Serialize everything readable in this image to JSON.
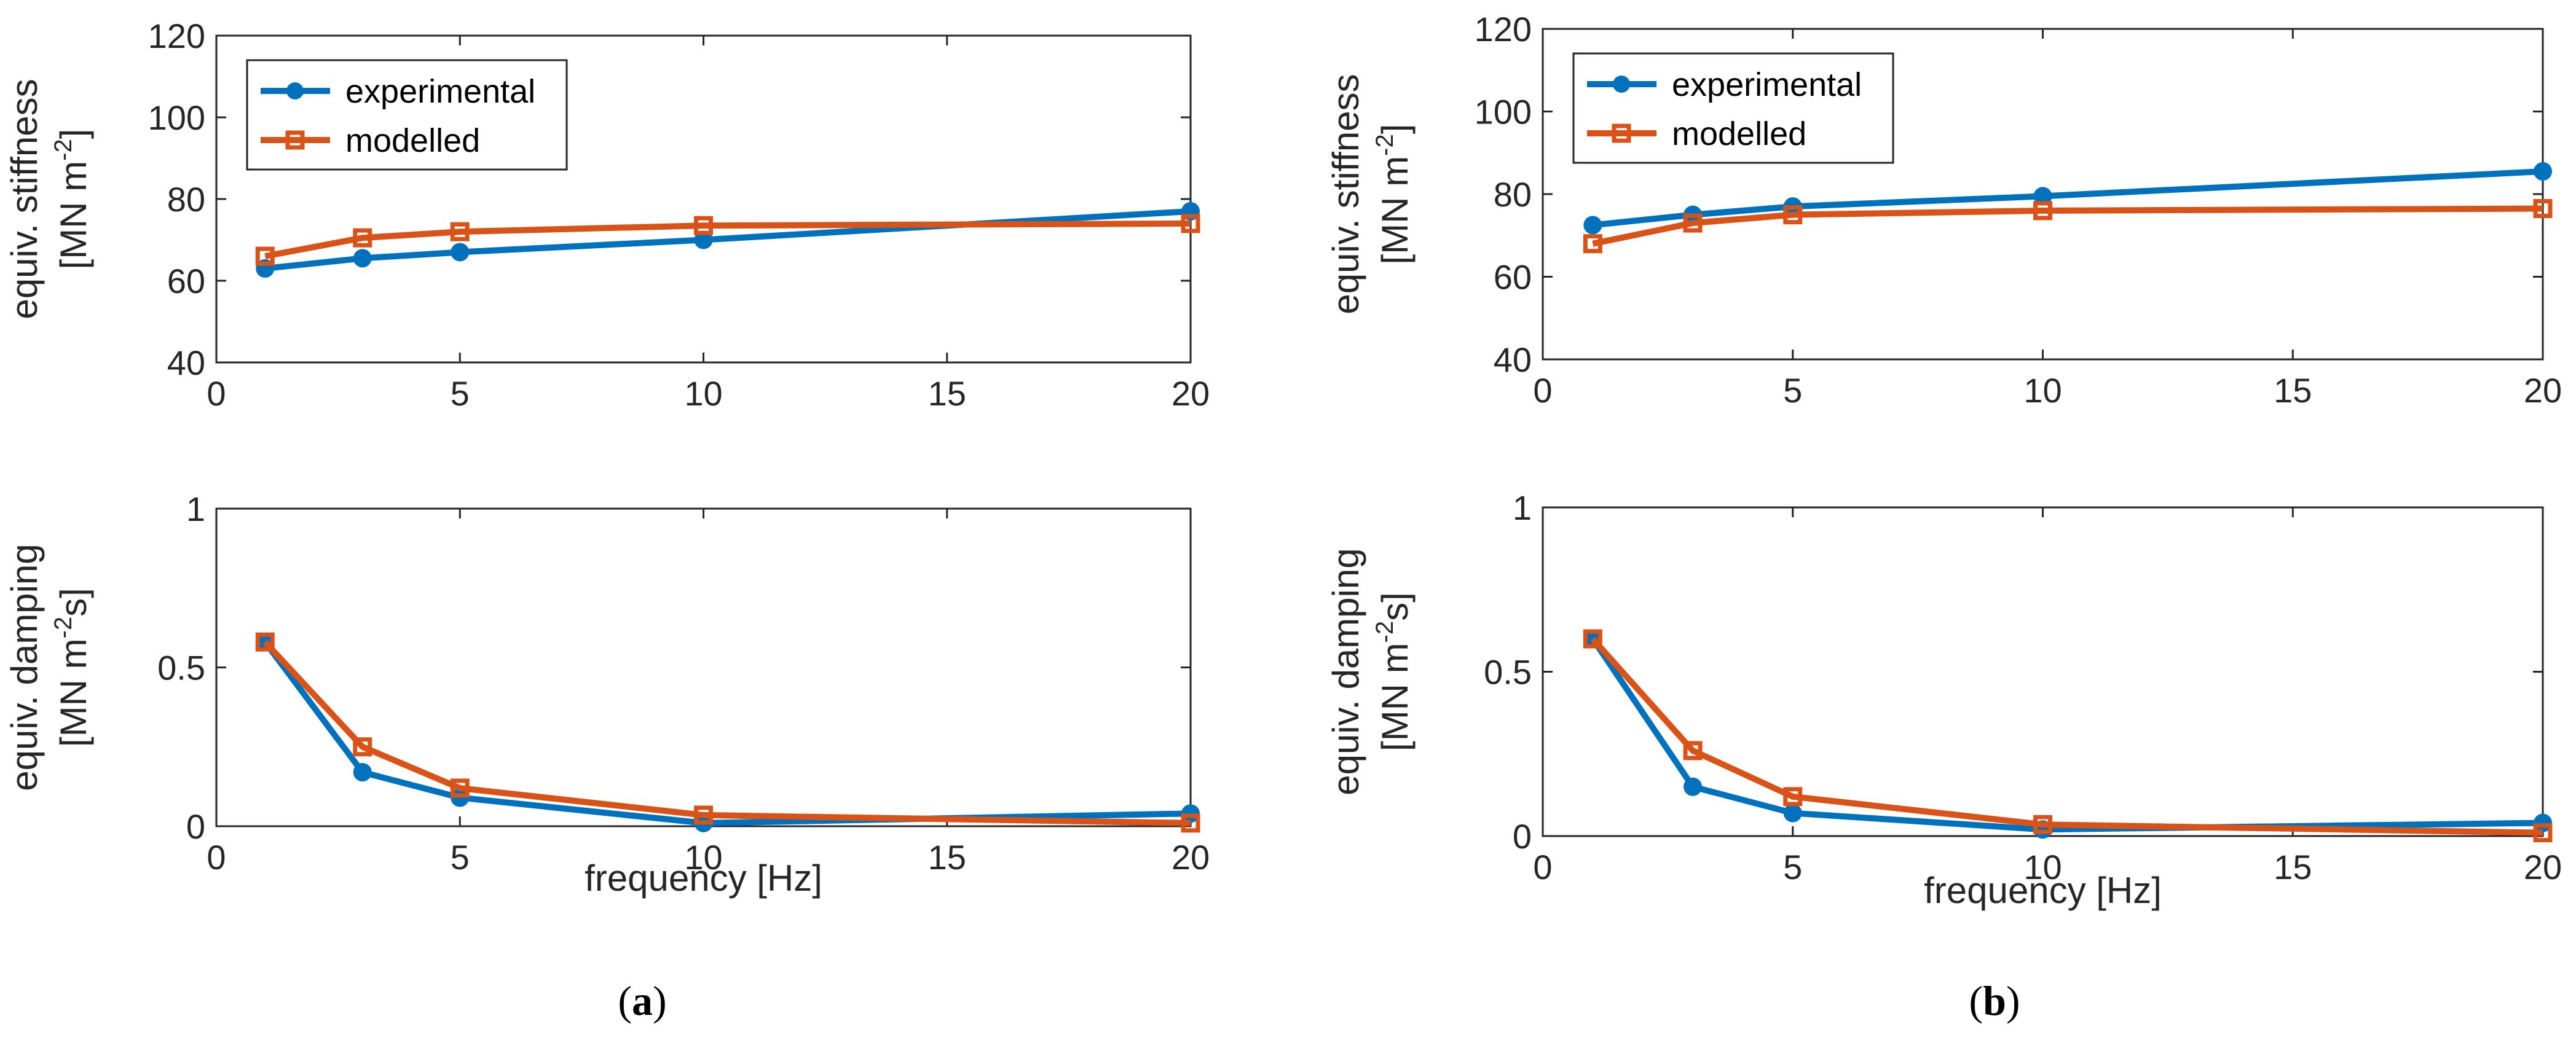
{
  "colors": {
    "experimental": "#0072BD",
    "modelled": "#D95319",
    "axis": "#262626"
  },
  "panels": [
    {
      "label_open": "(",
      "label_letter": "a",
      "label_close": ")"
    },
    {
      "label_open": "(",
      "label_letter": "b",
      "label_close": ")"
    }
  ],
  "chart_data": [
    {
      "id": "a-stiffness",
      "panel": "a",
      "type": "line",
      "xlabel": "",
      "ylabel_line1": "equiv. stiffness",
      "ylabel_line2_base": "[MN m",
      "ylabel_line2_sup": "-2",
      "ylabel_line2_end": "]",
      "xlim": [
        0,
        20
      ],
      "ylim": [
        40,
        120
      ],
      "xticks": [
        0,
        5,
        10,
        15,
        20
      ],
      "yticks": [
        40,
        60,
        80,
        100,
        120
      ],
      "xtick_labels": [
        "0",
        "5",
        "10",
        "15",
        "20"
      ],
      "ytick_labels": [
        "40",
        "60",
        "80",
        "100",
        "120"
      ],
      "legend": true,
      "series": [
        {
          "name": "experimental",
          "marker": "circle",
          "x": [
            1,
            3,
            5,
            10,
            20
          ],
          "values": [
            63,
            65.5,
            67,
            70,
            77
          ]
        },
        {
          "name": "modelled",
          "marker": "square",
          "x": [
            1,
            3,
            5,
            10,
            20
          ],
          "values": [
            66,
            70.5,
            72,
            73.5,
            74
          ]
        }
      ]
    },
    {
      "id": "a-damping",
      "panel": "a",
      "type": "line",
      "xlabel": "frequency [Hz]",
      "ylabel_line1": "equiv. damping",
      "ylabel_line2_base": "[MN m",
      "ylabel_line2_sup": "-2",
      "ylabel_line2_end": "s]",
      "xlim": [
        0,
        20
      ],
      "ylim": [
        0,
        1
      ],
      "xticks": [
        0,
        5,
        10,
        15,
        20
      ],
      "yticks": [
        0,
        0.5,
        1
      ],
      "xtick_labels": [
        "0",
        "5",
        "10",
        "15",
        "20"
      ],
      "ytick_labels": [
        "0",
        "0.5",
        "1"
      ],
      "legend": false,
      "series": [
        {
          "name": "experimental",
          "marker": "circle",
          "x": [
            1,
            3,
            5,
            10,
            20
          ],
          "values": [
            0.58,
            0.17,
            0.09,
            0.01,
            0.04
          ]
        },
        {
          "name": "modelled",
          "marker": "square",
          "x": [
            1,
            3,
            5,
            10,
            20
          ],
          "values": [
            0.58,
            0.25,
            0.12,
            0.035,
            0.01
          ]
        }
      ]
    },
    {
      "id": "b-stiffness",
      "panel": "b",
      "type": "line",
      "xlabel": "",
      "ylabel_line1": "equiv. stiffness",
      "ylabel_line2_base": "[MN m",
      "ylabel_line2_sup": "-2",
      "ylabel_line2_end": "]",
      "xlim": [
        0,
        20
      ],
      "ylim": [
        40,
        120
      ],
      "xticks": [
        0,
        5,
        10,
        15,
        20
      ],
      "yticks": [
        40,
        60,
        80,
        100,
        120
      ],
      "xtick_labels": [
        "0",
        "5",
        "10",
        "15",
        "20"
      ],
      "ytick_labels": [
        "40",
        "60",
        "80",
        "100",
        "120"
      ],
      "legend": true,
      "series": [
        {
          "name": "experimental",
          "marker": "circle",
          "x": [
            1,
            3,
            5,
            10,
            20
          ],
          "values": [
            72.5,
            75,
            77,
            79.5,
            85.5
          ]
        },
        {
          "name": "modelled",
          "marker": "square",
          "x": [
            1,
            3,
            5,
            10,
            20
          ],
          "values": [
            68,
            73,
            75,
            76,
            76.5
          ]
        }
      ]
    },
    {
      "id": "b-damping",
      "panel": "b",
      "type": "line",
      "xlabel": "frequency [Hz]",
      "ylabel_line1": "equiv. damping",
      "ylabel_line2_base": "[MN m",
      "ylabel_line2_sup": "-2",
      "ylabel_line2_end": "s]",
      "xlim": [
        0,
        20
      ],
      "ylim": [
        0,
        1
      ],
      "xticks": [
        0,
        5,
        10,
        15,
        20
      ],
      "yticks": [
        0,
        0.5,
        1
      ],
      "xtick_labels": [
        "0",
        "5",
        "10",
        "15",
        "20"
      ],
      "ytick_labels": [
        "0",
        "0.5",
        "1"
      ],
      "legend": false,
      "series": [
        {
          "name": "experimental",
          "marker": "circle",
          "x": [
            1,
            3,
            5,
            10,
            20
          ],
          "values": [
            0.6,
            0.15,
            0.07,
            0.02,
            0.04
          ]
        },
        {
          "name": "modelled",
          "marker": "square",
          "x": [
            1,
            3,
            5,
            10,
            20
          ],
          "values": [
            0.6,
            0.26,
            0.12,
            0.035,
            0.01
          ]
        }
      ]
    }
  ]
}
